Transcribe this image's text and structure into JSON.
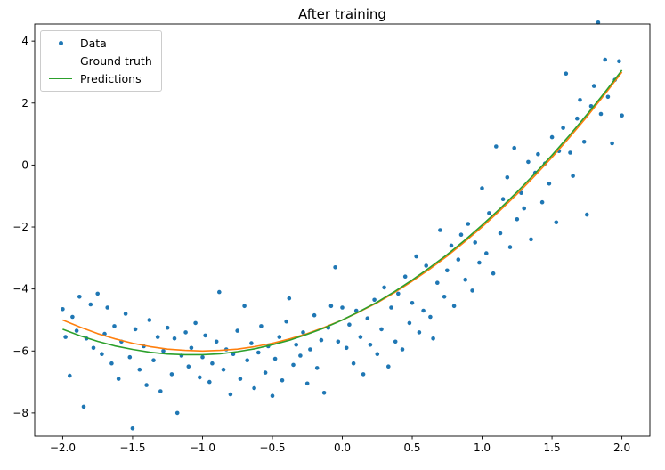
{
  "title": "After training",
  "colors": {
    "background": "#ffffff",
    "axis": "#000000",
    "legend_border": "#cccccc",
    "data": "#1f77b4",
    "ground_truth": "#ff7f0e",
    "predictions": "#2ca02c"
  },
  "chart_data": {
    "type": "scatter",
    "title": "After training",
    "xlabel": "",
    "ylabel": "",
    "xlim": [
      -2.2,
      2.2
    ],
    "ylim": [
      -8.75,
      4.55
    ],
    "grid": false,
    "legend_position": "upper-left",
    "x_ticks": [
      -2.0,
      -1.5,
      -1.0,
      -0.5,
      0.0,
      0.5,
      1.0,
      1.5,
      2.0
    ],
    "x_tick_labels": [
      "−2.0",
      "−1.5",
      "−1.0",
      "−0.5",
      "0.0",
      "0.5",
      "1.0",
      "1.5",
      "2.0"
    ],
    "y_ticks": [
      -8,
      -6,
      -4,
      -2,
      0,
      2,
      4
    ],
    "y_tick_labels": [
      "−8",
      "−6",
      "−4",
      "−2",
      "0",
      "2",
      "4"
    ],
    "series": [
      {
        "name": "Data",
        "type": "scatter",
        "color": "#1f77b4",
        "marker": "circle",
        "points": [
          [
            -2.0,
            -4.65
          ],
          [
            -1.98,
            -5.55
          ],
          [
            -1.95,
            -6.8
          ],
          [
            -1.93,
            -4.9
          ],
          [
            -1.9,
            -5.35
          ],
          [
            -1.88,
            -4.25
          ],
          [
            -1.85,
            -7.8
          ],
          [
            -1.83,
            -5.6
          ],
          [
            -1.8,
            -4.5
          ],
          [
            -1.78,
            -5.9
          ],
          [
            -1.75,
            -4.15
          ],
          [
            -1.72,
            -6.1
          ],
          [
            -1.7,
            -5.45
          ],
          [
            -1.68,
            -4.6
          ],
          [
            -1.65,
            -6.4
          ],
          [
            -1.63,
            -5.2
          ],
          [
            -1.6,
            -6.9
          ],
          [
            -1.58,
            -5.7
          ],
          [
            -1.55,
            -4.8
          ],
          [
            -1.52,
            -6.2
          ],
          [
            -1.5,
            -8.5
          ],
          [
            -1.48,
            -5.3
          ],
          [
            -1.45,
            -6.6
          ],
          [
            -1.42,
            -5.85
          ],
          [
            -1.4,
            -7.1
          ],
          [
            -1.38,
            -5.0
          ],
          [
            -1.35,
            -6.3
          ],
          [
            -1.32,
            -5.55
          ],
          [
            -1.3,
            -7.3
          ],
          [
            -1.28,
            -6.0
          ],
          [
            -1.25,
            -5.25
          ],
          [
            -1.22,
            -6.75
          ],
          [
            -1.2,
            -5.6
          ],
          [
            -1.18,
            -8.0
          ],
          [
            -1.15,
            -6.15
          ],
          [
            -1.12,
            -5.4
          ],
          [
            -1.1,
            -6.5
          ],
          [
            -1.08,
            -5.9
          ],
          [
            -1.05,
            -5.1
          ],
          [
            -1.02,
            -6.85
          ],
          [
            -1.0,
            -6.2
          ],
          [
            -0.98,
            -5.5
          ],
          [
            -0.95,
            -7.0
          ],
          [
            -0.93,
            -6.4
          ],
          [
            -0.9,
            -5.7
          ],
          [
            -0.88,
            -4.1
          ],
          [
            -0.85,
            -6.6
          ],
          [
            -0.83,
            -5.95
          ],
          [
            -0.8,
            -7.4
          ],
          [
            -0.78,
            -6.1
          ],
          [
            -0.75,
            -5.35
          ],
          [
            -0.73,
            -6.9
          ],
          [
            -0.7,
            -4.55
          ],
          [
            -0.68,
            -6.3
          ],
          [
            -0.65,
            -5.75
          ],
          [
            -0.63,
            -7.2
          ],
          [
            -0.6,
            -6.05
          ],
          [
            -0.58,
            -5.2
          ],
          [
            -0.55,
            -6.7
          ],
          [
            -0.53,
            -5.85
          ],
          [
            -0.5,
            -7.45
          ],
          [
            -0.48,
            -6.25
          ],
          [
            -0.45,
            -5.55
          ],
          [
            -0.43,
            -6.95
          ],
          [
            -0.4,
            -5.05
          ],
          [
            -0.38,
            -4.3
          ],
          [
            -0.35,
            -6.45
          ],
          [
            -0.33,
            -5.8
          ],
          [
            -0.3,
            -6.15
          ],
          [
            -0.28,
            -5.4
          ],
          [
            -0.25,
            -7.05
          ],
          [
            -0.23,
            -5.95
          ],
          [
            -0.2,
            -4.85
          ],
          [
            -0.18,
            -6.55
          ],
          [
            -0.15,
            -5.65
          ],
          [
            -0.13,
            -7.35
          ],
          [
            -0.1,
            -5.25
          ],
          [
            -0.08,
            -4.55
          ],
          [
            -0.05,
            -3.3
          ],
          [
            -0.03,
            -5.7
          ],
          [
            0.0,
            -4.6
          ],
          [
            0.03,
            -5.9
          ],
          [
            0.05,
            -5.15
          ],
          [
            0.08,
            -6.4
          ],
          [
            0.1,
            -4.7
          ],
          [
            0.13,
            -5.55
          ],
          [
            0.15,
            -6.75
          ],
          [
            0.18,
            -4.95
          ],
          [
            0.2,
            -5.8
          ],
          [
            0.23,
            -4.35
          ],
          [
            0.25,
            -6.1
          ],
          [
            0.28,
            -5.3
          ],
          [
            0.3,
            -3.95
          ],
          [
            0.33,
            -6.5
          ],
          [
            0.35,
            -4.6
          ],
          [
            0.38,
            -5.7
          ],
          [
            0.4,
            -4.15
          ],
          [
            0.43,
            -5.95
          ],
          [
            0.45,
            -3.6
          ],
          [
            0.48,
            -5.1
          ],
          [
            0.5,
            -4.45
          ],
          [
            0.53,
            -2.95
          ],
          [
            0.55,
            -5.4
          ],
          [
            0.58,
            -4.7
          ],
          [
            0.6,
            -3.25
          ],
          [
            0.63,
            -4.9
          ],
          [
            0.65,
            -5.6
          ],
          [
            0.68,
            -3.8
          ],
          [
            0.7,
            -2.1
          ],
          [
            0.73,
            -4.25
          ],
          [
            0.75,
            -3.4
          ],
          [
            0.78,
            -2.6
          ],
          [
            0.8,
            -4.55
          ],
          [
            0.83,
            -3.05
          ],
          [
            0.85,
            -2.25
          ],
          [
            0.88,
            -3.7
          ],
          [
            0.9,
            -1.9
          ],
          [
            0.93,
            -4.05
          ],
          [
            0.95,
            -2.5
          ],
          [
            0.98,
            -3.15
          ],
          [
            1.0,
            -0.75
          ],
          [
            1.03,
            -2.85
          ],
          [
            1.05,
            -1.55
          ],
          [
            1.08,
            -3.5
          ],
          [
            1.1,
            0.6
          ],
          [
            1.13,
            -2.2
          ],
          [
            1.15,
            -1.1
          ],
          [
            1.18,
            -0.4
          ],
          [
            1.2,
            -2.65
          ],
          [
            1.23,
            0.55
          ],
          [
            1.25,
            -1.75
          ],
          [
            1.28,
            -0.9
          ],
          [
            1.3,
            -1.4
          ],
          [
            1.33,
            0.1
          ],
          [
            1.35,
            -2.4
          ],
          [
            1.38,
            -0.25
          ],
          [
            1.4,
            0.35
          ],
          [
            1.43,
            -1.2
          ],
          [
            1.45,
            0.05
          ],
          [
            1.48,
            -0.6
          ],
          [
            1.5,
            0.9
          ],
          [
            1.53,
            -1.85
          ],
          [
            1.55,
            0.45
          ],
          [
            1.58,
            1.2
          ],
          [
            1.6,
            2.95
          ],
          [
            1.63,
            0.4
          ],
          [
            1.65,
            -0.35
          ],
          [
            1.68,
            1.5
          ],
          [
            1.7,
            2.1
          ],
          [
            1.73,
            0.75
          ],
          [
            1.75,
            -1.6
          ],
          [
            1.78,
            1.9
          ],
          [
            1.8,
            2.55
          ],
          [
            1.83,
            4.6
          ],
          [
            1.85,
            1.65
          ],
          [
            1.88,
            3.4
          ],
          [
            1.9,
            2.2
          ],
          [
            1.93,
            0.7
          ],
          [
            1.95,
            2.75
          ],
          [
            1.98,
            3.35
          ],
          [
            2.0,
            1.6
          ]
        ]
      },
      {
        "name": "Ground truth",
        "type": "line",
        "color": "#ff7f0e",
        "points": [
          [
            -2.0,
            -5.0
          ],
          [
            -1.875,
            -5.23
          ],
          [
            -1.75,
            -5.44
          ],
          [
            -1.625,
            -5.61
          ],
          [
            -1.5,
            -5.75
          ],
          [
            -1.375,
            -5.86
          ],
          [
            -1.25,
            -5.94
          ],
          [
            -1.125,
            -5.98
          ],
          [
            -1.0,
            -6.0
          ],
          [
            -0.875,
            -5.98
          ],
          [
            -0.75,
            -5.94
          ],
          [
            -0.625,
            -5.86
          ],
          [
            -0.5,
            -5.75
          ],
          [
            -0.375,
            -5.61
          ],
          [
            -0.25,
            -5.44
          ],
          [
            -0.125,
            -5.23
          ],
          [
            0.0,
            -5.0
          ],
          [
            0.125,
            -4.73
          ],
          [
            0.25,
            -4.44
          ],
          [
            0.375,
            -4.11
          ],
          [
            0.5,
            -3.75
          ],
          [
            0.625,
            -3.36
          ],
          [
            0.75,
            -2.94
          ],
          [
            0.875,
            -2.48
          ],
          [
            1.0,
            -2.0
          ],
          [
            1.125,
            -1.48
          ],
          [
            1.25,
            -0.94
          ],
          [
            1.375,
            -0.36
          ],
          [
            1.5,
            0.25
          ],
          [
            1.625,
            0.89
          ],
          [
            1.75,
            1.56
          ],
          [
            1.875,
            2.27
          ],
          [
            2.0,
            3.0
          ]
        ]
      },
      {
        "name": "Predictions",
        "type": "line",
        "color": "#2ca02c",
        "points": [
          [
            -2.0,
            -5.3
          ],
          [
            -1.875,
            -5.51
          ],
          [
            -1.75,
            -5.69
          ],
          [
            -1.625,
            -5.84
          ],
          [
            -1.5,
            -5.95
          ],
          [
            -1.375,
            -6.04
          ],
          [
            -1.25,
            -6.1
          ],
          [
            -1.125,
            -6.12
          ],
          [
            -1.0,
            -6.12
          ],
          [
            -0.875,
            -6.09
          ],
          [
            -0.75,
            -6.02
          ],
          [
            -0.625,
            -5.93
          ],
          [
            -0.5,
            -5.8
          ],
          [
            -0.375,
            -5.65
          ],
          [
            -0.25,
            -5.46
          ],
          [
            -0.125,
            -5.25
          ],
          [
            0.0,
            -5.0
          ],
          [
            0.125,
            -4.72
          ],
          [
            0.25,
            -4.42
          ],
          [
            0.375,
            -4.08
          ],
          [
            0.5,
            -3.71
          ],
          [
            0.625,
            -3.31
          ],
          [
            0.75,
            -2.89
          ],
          [
            0.875,
            -2.43
          ],
          [
            1.0,
            -1.94
          ],
          [
            1.125,
            -1.42
          ],
          [
            1.25,
            -0.87
          ],
          [
            1.375,
            -0.29
          ],
          [
            1.5,
            0.32
          ],
          [
            1.625,
            0.96
          ],
          [
            1.75,
            1.63
          ],
          [
            1.875,
            2.33
          ],
          [
            2.0,
            3.06
          ]
        ]
      }
    ]
  }
}
